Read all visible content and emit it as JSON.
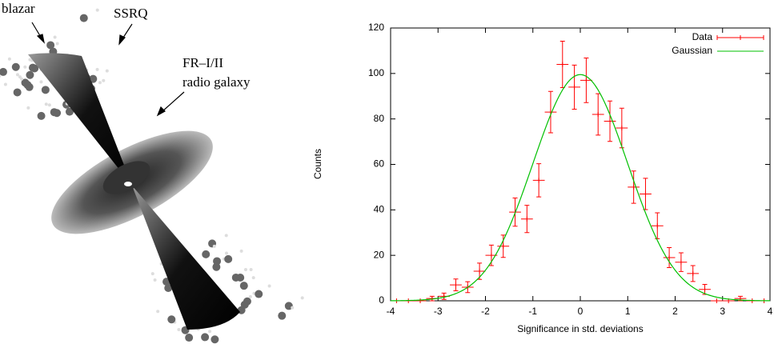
{
  "diagram": {
    "labels": [
      "blazar",
      "SSRQ",
      "FR–I/II",
      "radio galaxy"
    ]
  },
  "chart_data": {
    "type": "errorbar",
    "xlabel": "Significance in std. deviations",
    "ylabel": "Counts",
    "xlim": [
      -4,
      4
    ],
    "ylim": [
      0,
      120
    ],
    "xticks": [
      -4,
      -3,
      -2,
      -1,
      0,
      1,
      2,
      3,
      4
    ],
    "yticks": [
      0,
      20,
      40,
      60,
      80,
      100,
      120
    ],
    "legend": "upper right",
    "series": [
      {
        "name": "Data",
        "color": "#ff0000",
        "bin_width": 0.25,
        "x": [
          -3.875,
          -3.625,
          -3.375,
          -3.125,
          -2.875,
          -2.625,
          -2.375,
          -2.125,
          -1.875,
          -1.625,
          -1.375,
          -1.125,
          -0.875,
          -0.625,
          -0.375,
          -0.125,
          0.125,
          0.375,
          0.625,
          0.875,
          1.125,
          1.375,
          1.625,
          1.875,
          2.125,
          2.375,
          2.625,
          2.875,
          3.125,
          3.375,
          3.625,
          3.875
        ],
        "values": [
          0,
          0,
          0,
          1,
          2,
          7,
          6,
          13,
          20,
          24,
          39,
          36,
          53,
          83,
          104,
          94,
          97,
          82,
          79,
          76,
          50,
          47,
          33,
          19,
          17,
          12,
          5,
          0,
          0,
          1,
          0,
          0
        ],
        "errors": [
          0,
          0,
          0,
          1,
          1.4,
          2.6,
          2.4,
          3.6,
          4.5,
          4.9,
          6.2,
          6,
          7.3,
          9.1,
          10.2,
          9.7,
          9.8,
          9.1,
          8.9,
          8.7,
          7.1,
          6.9,
          5.7,
          4.4,
          4.1,
          3.5,
          2.2,
          0,
          0,
          1,
          0,
          0
        ]
      },
      {
        "name": "Gaussian",
        "color": "#00c000",
        "amplitude": 99.5,
        "mean": 0,
        "sigma": 1
      }
    ]
  }
}
